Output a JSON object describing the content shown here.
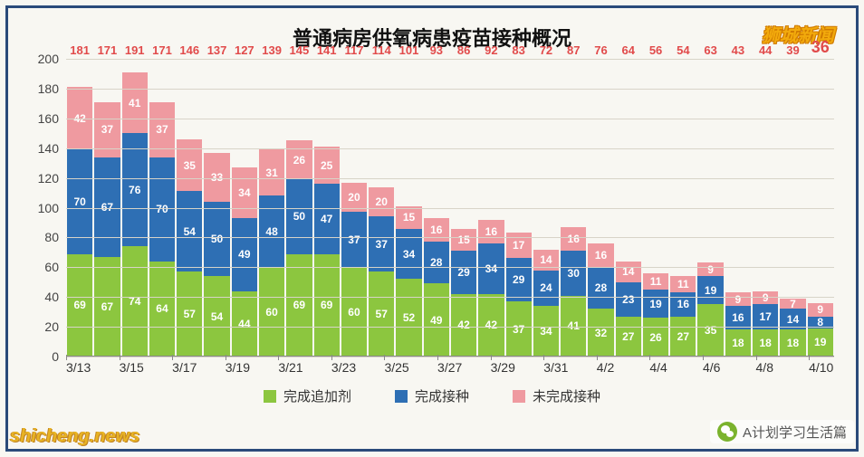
{
  "title": "普通病房供氧病患疫苗接种概况",
  "title_fontsize": 22,
  "brand": "狮城新闻",
  "brand_fontsize": 20,
  "background_color": "#f8f7f2",
  "frame_border_color": "#2a4a7a",
  "chart": {
    "type": "stacked-bar",
    "ymax": 200,
    "ytick_step": 20,
    "yticks": [
      0,
      20,
      40,
      60,
      80,
      100,
      120,
      140,
      160,
      180,
      200
    ],
    "grid_color": "#d8d4c8",
    "axis_text_color": "#444",
    "categories": [
      "3/13",
      "3/14",
      "3/15",
      "3/16",
      "3/17",
      "3/18",
      "3/19",
      "3/20",
      "3/21",
      "3/22",
      "3/23",
      "3/24",
      "3/25",
      "3/26",
      "3/27",
      "3/28",
      "3/29",
      "3/30",
      "3/31",
      "4/1",
      "4/2",
      "4/3",
      "4/4",
      "4/5",
      "4/6",
      "4/7",
      "4/8",
      "4/9"
    ],
    "x_labels_shown": [
      "3/13",
      "3/15",
      "3/17",
      "3/19",
      "3/21",
      "3/23",
      "3/25",
      "3/27",
      "3/29",
      "3/31",
      "4/2",
      "4/4",
      "4/6",
      "4/8",
      "4/10"
    ],
    "series": [
      {
        "key": "booster",
        "label": "完成追加剂",
        "color": "#8cc63f",
        "values": [
          69,
          67,
          74,
          64,
          57,
          54,
          44,
          60,
          69,
          69,
          60,
          57,
          52,
          49,
          42,
          42,
          37,
          34,
          41,
          32,
          27,
          26,
          27,
          35,
          18,
          18,
          18,
          19
        ]
      },
      {
        "key": "full",
        "label": "完成接种",
        "color": "#2e6fb4",
        "values": [
          70,
          67,
          76,
          70,
          54,
          50,
          49,
          48,
          50,
          47,
          37,
          37,
          34,
          28,
          29,
          34,
          29,
          24,
          30,
          28,
          23,
          19,
          16,
          19,
          16,
          17,
          14,
          8
        ]
      },
      {
        "key": "notfull",
        "label": "未完成接种",
        "color": "#ef9aa0",
        "values": [
          42,
          37,
          41,
          37,
          35,
          33,
          34,
          31,
          26,
          25,
          20,
          20,
          15,
          16,
          15,
          16,
          17,
          14,
          16,
          16,
          14,
          11,
          11,
          9,
          9,
          9,
          7,
          9
        ]
      }
    ],
    "totals": [
      181,
      171,
      191,
      171,
      146,
      137,
      127,
      139,
      145,
      141,
      117,
      114,
      101,
      93,
      86,
      92,
      83,
      72,
      87,
      76,
      64,
      56,
      54,
      63,
      43,
      44,
      39,
      36
    ],
    "total_label_color": "#e14b4b",
    "total_label_highlight_index": 27,
    "total_label_fontsize": 13,
    "segment_label_color": "#ffffff",
    "segment_label_fontsize": 12
  },
  "legend_fontsize": 15,
  "watermark_left": "shicheng.news",
  "watermark_left_fontsize": 20,
  "watermark_right_label": "A计划学习生活篇",
  "watermark_right_icon": "wechat-icon"
}
